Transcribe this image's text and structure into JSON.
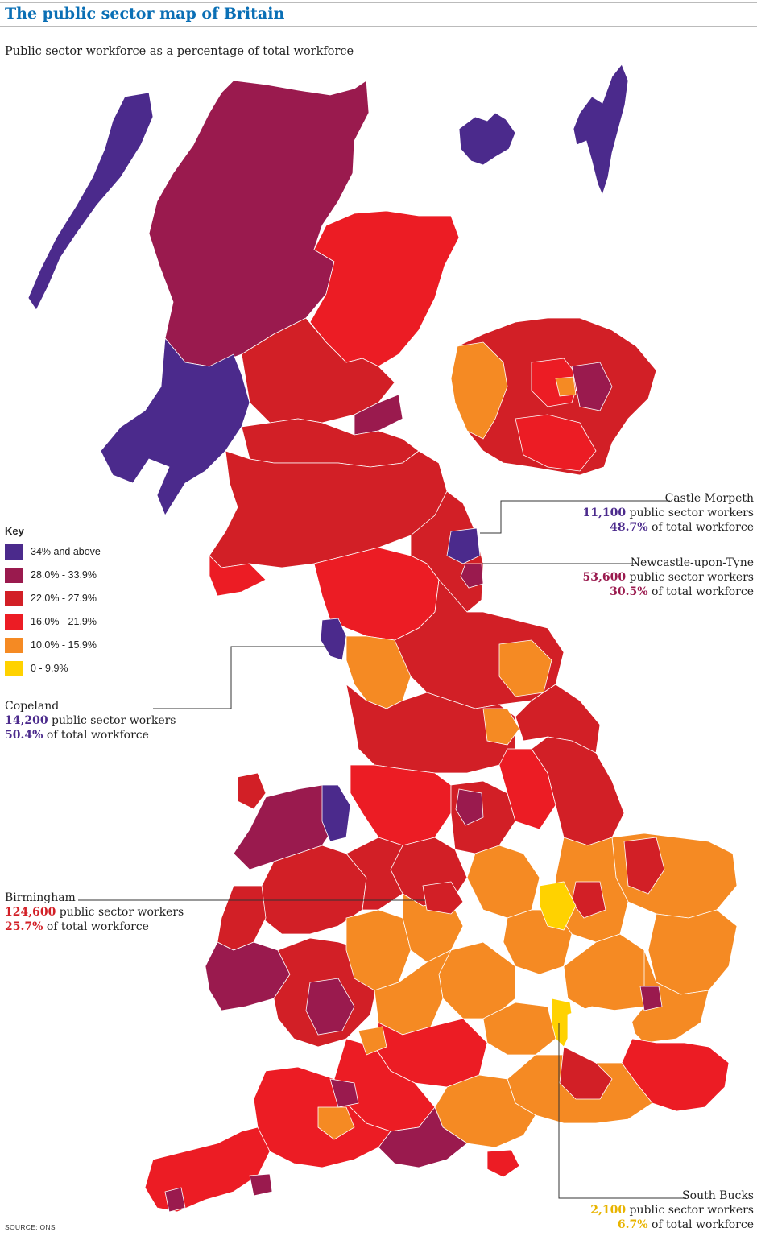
{
  "header": {
    "title": "The public sector map of Britain",
    "subtitle": "Public sector workforce as a percentage of total workforce"
  },
  "key": {
    "title": "Key",
    "items": [
      {
        "label": "34% and above",
        "color": "#4b2a8c"
      },
      {
        "label": "28.0% - 33.9%",
        "color": "#9a1a4e"
      },
      {
        "label": "22.0% - 27.9%",
        "color": "#d21f26"
      },
      {
        "label": "16.0% - 21.9%",
        "color": "#ec1c24"
      },
      {
        "label": "10.0% - 15.9%",
        "color": "#f58a23"
      },
      {
        "label": "0 - 9.9%",
        "color": "#ffd200"
      }
    ]
  },
  "callouts": {
    "castle_morpeth": {
      "name": "Castle Morpeth",
      "workers": "11,100",
      "workers_suffix": " public sector workers",
      "percent": "48.7%",
      "percent_suffix": " of total workforce",
      "color": "#4b2a8c"
    },
    "newcastle": {
      "name": "Newcastle-upon-Tyne",
      "workers": "53,600",
      "workers_suffix": " public sector workers",
      "percent": "30.5%",
      "percent_suffix": " of total workforce",
      "color": "#9a1a4e"
    },
    "copeland": {
      "name": "Copeland",
      "workers": "14,200",
      "workers_suffix": " public sector workers",
      "percent": "50.4%",
      "percent_suffix": " of total workforce",
      "color": "#4b2a8c"
    },
    "birmingham": {
      "name": "Birmingham",
      "workers": "124,600",
      "workers_suffix": " public sector workers",
      "percent": "25.7%",
      "percent_suffix": " of total workforce",
      "color": "#d21f26"
    },
    "south_bucks": {
      "name": "South Bucks",
      "workers": "2,100",
      "workers_suffix": " public sector workers",
      "percent": "6.7%",
      "percent_suffix": " of total workforce",
      "color": "#e8b400"
    }
  },
  "source": "SOURCE: ONS"
}
